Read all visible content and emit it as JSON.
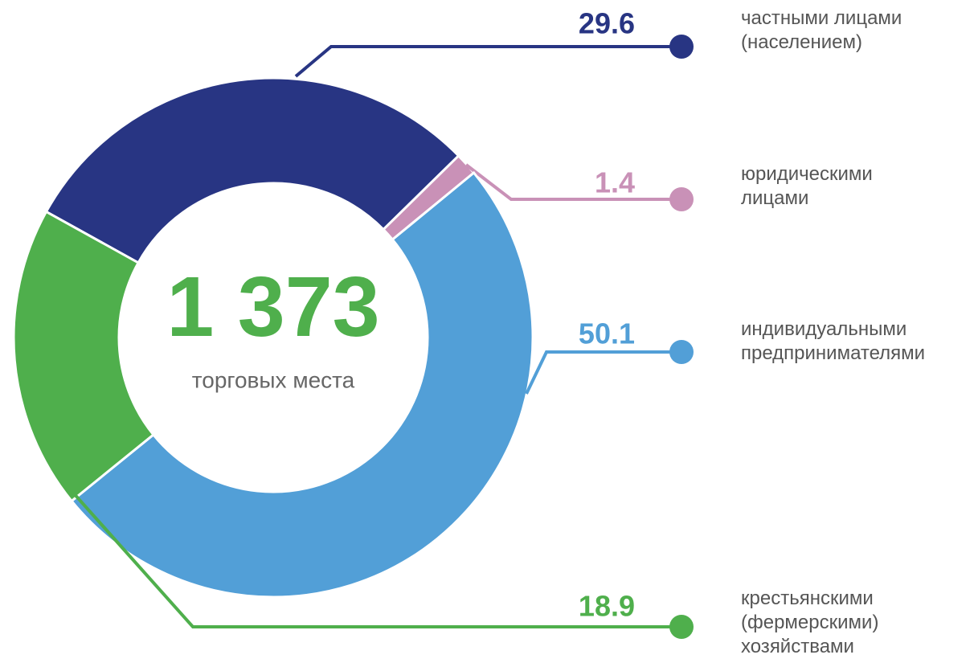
{
  "chart_data": {
    "type": "donut",
    "center_title": "1 373",
    "center_subtitle": "торговых места",
    "categories": [
      "частными лицами\n(населением)",
      "юридическими\nлицами",
      "индивидуальными\nпредпринимателями",
      "крестьянскими\n(фермерскими)\nхозяйствами"
    ],
    "values": [
      29.6,
      1.4,
      50.1,
      18.9
    ],
    "colors": [
      "#283583",
      "#c991b7",
      "#529fd7",
      "#4faf4c"
    ]
  }
}
